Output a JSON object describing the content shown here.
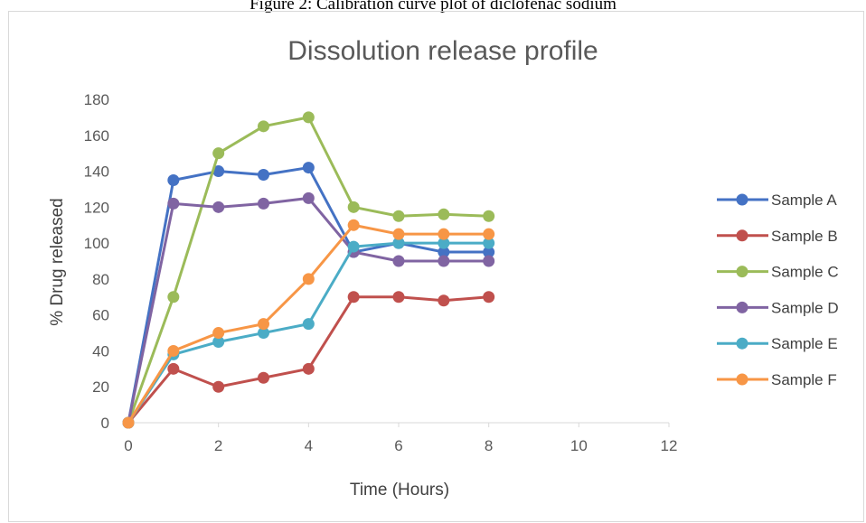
{
  "caption": "Figure 2: Calibration curve plot of diclofenac sodium",
  "chart_data": {
    "type": "line",
    "title": "Dissolution release profile",
    "xlabel": "Time (Hours)",
    "ylabel": "% Drug released",
    "xlim": [
      0,
      12
    ],
    "ylim": [
      0,
      180
    ],
    "xticks": [
      0,
      2,
      4,
      6,
      8,
      10,
      12
    ],
    "yticks": [
      0,
      20,
      40,
      60,
      80,
      100,
      120,
      140,
      160,
      180
    ],
    "grid": false,
    "legend": "right",
    "x": [
      0,
      1,
      2,
      3,
      4,
      5,
      6,
      7,
      8
    ],
    "series": [
      {
        "name": "Sample A",
        "color": "#4472c4",
        "values": [
          0,
          135,
          140,
          138,
          142,
          95,
          100,
          95,
          95
        ]
      },
      {
        "name": "Sample B",
        "color": "#c0504d",
        "values": [
          0,
          30,
          20,
          25,
          30,
          70,
          70,
          68,
          70
        ]
      },
      {
        "name": "Sample C",
        "color": "#9bbb59",
        "values": [
          0,
          70,
          150,
          165,
          170,
          120,
          115,
          116,
          115
        ]
      },
      {
        "name": "Sample D",
        "color": "#8064a2",
        "values": [
          0,
          122,
          120,
          122,
          125,
          95,
          90,
          90,
          90
        ]
      },
      {
        "name": "Sample E",
        "color": "#4bacc6",
        "values": [
          0,
          38,
          45,
          50,
          55,
          98,
          100,
          100,
          100
        ]
      },
      {
        "name": "Sample F",
        "color": "#f79646",
        "values": [
          0,
          40,
          50,
          55,
          80,
          110,
          105,
          105,
          105
        ]
      }
    ]
  }
}
